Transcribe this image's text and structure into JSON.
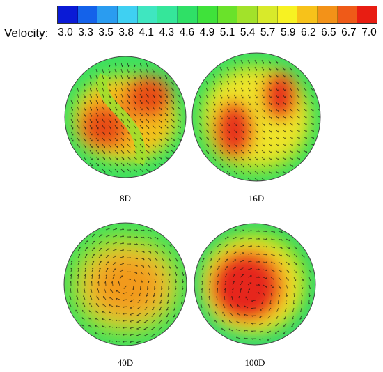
{
  "legend": {
    "label": "Velocity:",
    "ticks": [
      "3.0",
      "3.3",
      "3.5",
      "3.8",
      "4.1",
      "4.3",
      "4.6",
      "4.9",
      "5.1",
      "5.4",
      "5.7",
      "5.9",
      "6.2",
      "6.5",
      "6.7",
      "7.0"
    ],
    "colors": [
      "#0a1ad6",
      "#1462ea",
      "#2a9cf0",
      "#3fd0f2",
      "#3fe6c0",
      "#35e69a",
      "#2fe066",
      "#3fe23a",
      "#6ae22a",
      "#a2e22a",
      "#d8ea2a",
      "#f7f222",
      "#f7c21a",
      "#f39218",
      "#ef5a18",
      "#e81d12"
    ]
  },
  "panels": [
    {
      "label": "8D"
    },
    {
      "label": "16D"
    },
    {
      "label": "40D"
    },
    {
      "label": "100D"
    }
  ]
}
